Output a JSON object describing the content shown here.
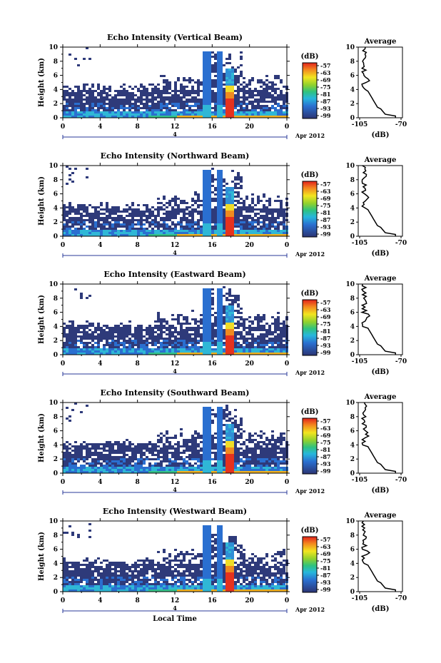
{
  "chart_data": [
    {
      "type": "heatmap",
      "title": "Echo Intensity (Vertical Beam)",
      "ylabel": "Height (km)",
      "xlabel": "",
      "date_label": "4",
      "month_year": "Apr 2012",
      "x_ticks": [
        "0",
        "4",
        "8",
        "12",
        "16",
        "20",
        "0"
      ],
      "y_ticks": [
        "0",
        "2",
        "4",
        "6",
        "8",
        "10"
      ],
      "xlim": [
        0,
        24
      ],
      "ylim": [
        0,
        10
      ],
      "colorbar": {
        "unit": "(dB)",
        "ticks": [
          "-57",
          "-63",
          "-69",
          "-75",
          "-81",
          "-87",
          "-93",
          "-99"
        ]
      },
      "profile": {
        "title": "Average",
        "xlabel": "(dB)",
        "x_ticks": [
          "-105",
          "-70"
        ],
        "y_ticks": [
          "0",
          "2",
          "4",
          "6",
          "8",
          "10"
        ]
      }
    },
    {
      "type": "heatmap",
      "title": "Echo Intensity (Northward Beam)",
      "ylabel": "Height (km)",
      "xlabel": "",
      "date_label": "4",
      "month_year": "Apr 2012",
      "x_ticks": [
        "0",
        "4",
        "8",
        "12",
        "16",
        "20",
        "0"
      ],
      "y_ticks": [
        "0",
        "2",
        "4",
        "6",
        "8",
        "10"
      ],
      "xlim": [
        0,
        24
      ],
      "ylim": [
        0,
        10
      ],
      "colorbar": {
        "unit": "(dB)",
        "ticks": [
          "-57",
          "-63",
          "-69",
          "-75",
          "-81",
          "-87",
          "-93",
          "-99"
        ]
      },
      "profile": {
        "title": "Average",
        "xlabel": "(dB)",
        "x_ticks": [
          "-105",
          "-70"
        ],
        "y_ticks": [
          "0",
          "2",
          "4",
          "6",
          "8",
          "10"
        ]
      }
    },
    {
      "type": "heatmap",
      "title": "Echo Intensity (Eastward Beam)",
      "ylabel": "Height (km)",
      "xlabel": "",
      "date_label": "4",
      "month_year": "Apr 2012",
      "x_ticks": [
        "0",
        "4",
        "8",
        "12",
        "16",
        "20",
        "0"
      ],
      "y_ticks": [
        "0",
        "2",
        "4",
        "6",
        "8",
        "10"
      ],
      "xlim": [
        0,
        24
      ],
      "ylim": [
        0,
        10
      ],
      "colorbar": {
        "unit": "(dB)",
        "ticks": [
          "-57",
          "-63",
          "-69",
          "-75",
          "-81",
          "-87",
          "-93",
          "-99"
        ]
      },
      "profile": {
        "title": "Average",
        "xlabel": "(dB)",
        "x_ticks": [
          "-105",
          "-70"
        ],
        "y_ticks": [
          "0",
          "2",
          "4",
          "6",
          "8",
          "10"
        ]
      }
    },
    {
      "type": "heatmap",
      "title": "Echo Intensity (Southward Beam)",
      "ylabel": "Height (km)",
      "xlabel": "",
      "date_label": "4",
      "month_year": "Apr 2012",
      "x_ticks": [
        "0",
        "4",
        "8",
        "12",
        "16",
        "20",
        "0"
      ],
      "y_ticks": [
        "0",
        "2",
        "4",
        "6",
        "8",
        "10"
      ],
      "xlim": [
        0,
        24
      ],
      "ylim": [
        0,
        10
      ],
      "colorbar": {
        "unit": "(dB)",
        "ticks": [
          "-57",
          "-63",
          "-69",
          "-75",
          "-81",
          "-87",
          "-93",
          "-99"
        ]
      },
      "profile": {
        "title": "Average",
        "xlabel": "(dB)",
        "x_ticks": [
          "-105",
          "-70"
        ],
        "y_ticks": [
          "0",
          "2",
          "4",
          "6",
          "8",
          "10"
        ]
      }
    },
    {
      "type": "heatmap",
      "title": "Echo Intensity (Westward Beam)",
      "ylabel": "Height (km)",
      "xlabel": "Local Time",
      "date_label": "4",
      "month_year": "Apr 2012",
      "x_ticks": [
        "0",
        "4",
        "8",
        "12",
        "16",
        "20",
        "0"
      ],
      "y_ticks": [
        "0",
        "2",
        "4",
        "6",
        "8",
        "10"
      ],
      "xlim": [
        0,
        24
      ],
      "ylim": [
        0,
        10
      ],
      "colorbar": {
        "unit": "(dB)",
        "ticks": [
          "-57",
          "-63",
          "-69",
          "-75",
          "-81",
          "-87",
          "-93",
          "-99"
        ]
      },
      "profile": {
        "title": "Average",
        "xlabel": "(dB)",
        "x_ticks": [
          "-105",
          "-70"
        ],
        "y_ticks": [
          "0",
          "2",
          "4",
          "6",
          "8",
          "10"
        ]
      }
    }
  ],
  "colors": {
    "low": "#2e3a7a",
    "mid": "#2fb7d6",
    "peak": "#e5321e",
    "background": "#ffffff"
  }
}
